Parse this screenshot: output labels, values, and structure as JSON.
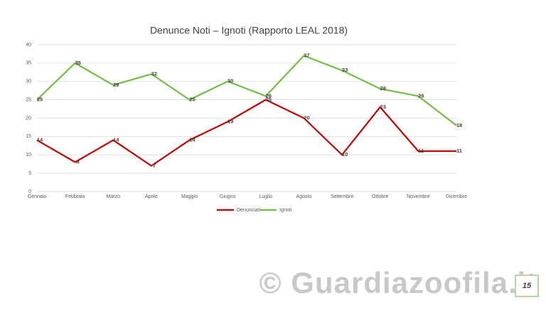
{
  "chart_data": {
    "type": "line",
    "title": "Denunce Noti – Ignoti (Rapporto LEAL 2018)",
    "categories": [
      "Gennaio",
      "Febbraio",
      "Marzo",
      "Aprile",
      "Maggio",
      "Giugno",
      "Luglio",
      "Agosto",
      "Settembre",
      "Ottobre",
      "Novembre",
      "Dicembre"
    ],
    "series": [
      {
        "name": "Denunciati",
        "color": "#c00000",
        "values": [
          14,
          8,
          14,
          7,
          14,
          19,
          25,
          20,
          10,
          23,
          11,
          11
        ]
      },
      {
        "name": "Ignoti",
        "color": "#70bf41",
        "values": [
          25,
          35,
          29,
          32,
          25,
          30,
          26,
          37,
          33,
          28,
          26,
          18
        ]
      }
    ],
    "ylim": [
      0,
      40
    ],
    "yticks": [
      0,
      5,
      10,
      15,
      20,
      25,
      30,
      35,
      40
    ],
    "grid": true,
    "legend": "bottom"
  },
  "watermark": "© Guardiazoofila.it",
  "page_number": "15"
}
